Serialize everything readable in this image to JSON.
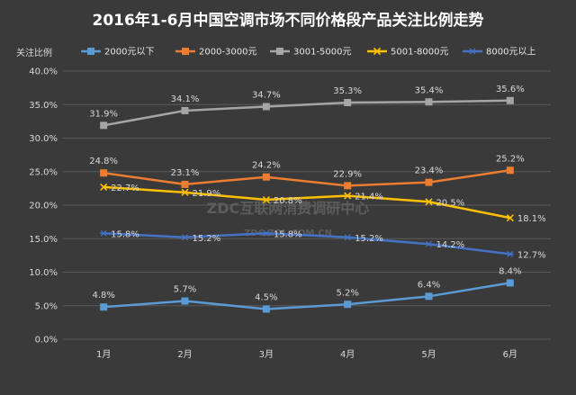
{
  "chart_data": {
    "type": "line",
    "title": "2016年1-6月中国空调市场不同价格段产品关注比例走势",
    "ylabel": "关注比例",
    "xlabel": "",
    "categories": [
      "1月",
      "2月",
      "3月",
      "4月",
      "5月",
      "6月"
    ],
    "ylim": [
      0,
      40
    ],
    "yticks": [
      "0.0%",
      "5.0%",
      "10.0%",
      "15.0%",
      "20.0%",
      "25.0%",
      "30.0%",
      "35.0%",
      "40.0%"
    ],
    "grid": true,
    "legend": "top",
    "series": [
      {
        "name": "2000元以下",
        "color": "#5b9bd5",
        "marker": "square",
        "values": [
          4.8,
          5.7,
          4.5,
          5.2,
          6.4,
          8.4
        ],
        "labels": [
          "4.8%",
          "5.7%",
          "4.5%",
          "5.2%",
          "6.4%",
          "8.4%"
        ]
      },
      {
        "name": "2000-3000元",
        "color": "#ed7d31",
        "marker": "square",
        "values": [
          24.8,
          23.1,
          24.2,
          22.9,
          23.4,
          25.2
        ],
        "labels": [
          "24.8%",
          "23.1%",
          "24.2%",
          "22.9%",
          "23.4%",
          "25.2%"
        ]
      },
      {
        "name": "3001-5000元",
        "color": "#a5a5a5",
        "marker": "square",
        "values": [
          31.9,
          34.1,
          34.7,
          35.3,
          35.4,
          35.6
        ],
        "labels": [
          "31.9%",
          "34.1%",
          "34.7%",
          "35.3%",
          "35.4%",
          "35.6%"
        ]
      },
      {
        "name": "5001-8000元",
        "color": "#ffc000",
        "marker": "x",
        "values": [
          22.7,
          21.9,
          20.8,
          21.4,
          20.5,
          18.1
        ],
        "labels": [
          "22.7%",
          "21.9%",
          "20.8%",
          "21.4%",
          "20.5%",
          "18.1%"
        ]
      },
      {
        "name": "8000元以上",
        "color": "#4472c4",
        "marker": "star",
        "values": [
          15.8,
          15.2,
          15.8,
          15.2,
          14.2,
          12.7
        ],
        "labels": [
          "15.8%",
          "15.2%",
          "15.8%",
          "15.2%",
          "14.2%",
          "12.7%"
        ]
      }
    ]
  },
  "watermark": {
    "line1": "ZDC互联网消费调研中心",
    "line2": "ZDC.ZOL.COM.CN"
  }
}
